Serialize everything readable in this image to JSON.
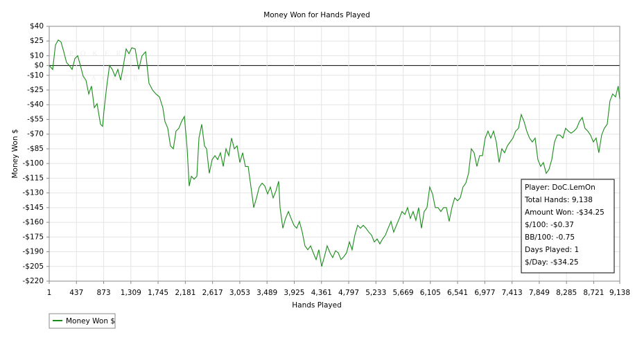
{
  "chart_data": {
    "type": "line",
    "title": "Money Won for Hands Played",
    "x_label": "Hands Played",
    "y_label": "Money Won $",
    "watermark": [
      "POKER",
      "TRACKER"
    ],
    "xlim": [
      1,
      9138
    ],
    "ylim": [
      -220,
      40
    ],
    "xticks": [
      1,
      437,
      873,
      {
        "value": 1309,
        "label": "1,309"
      },
      {
        "value": 1745,
        "label": "1,745"
      },
      {
        "value": 2181,
        "label": "2,181"
      },
      {
        "value": 2617,
        "label": "2,617"
      },
      {
        "value": 3053,
        "label": "3,053"
      },
      {
        "value": 3489,
        "label": "3,489"
      },
      {
        "value": 3925,
        "label": "3,925"
      },
      {
        "value": 4361,
        "label": "4,361"
      },
      {
        "value": 4797,
        "label": "4,797"
      },
      {
        "value": 5233,
        "label": "5,233"
      },
      {
        "value": 5669,
        "label": "5,669"
      },
      {
        "value": 6105,
        "label": "6,105"
      },
      {
        "value": 6541,
        "label": "6,541"
      },
      {
        "value": 6977,
        "label": "6,977"
      },
      {
        "value": 7413,
        "label": "7,413"
      },
      {
        "value": 7849,
        "label": "7,849"
      },
      {
        "value": 8285,
        "label": "8,285"
      },
      {
        "value": 8721,
        "label": "8,721"
      },
      {
        "value": 9138,
        "label": "9,138"
      }
    ],
    "yticks": [
      {
        "value": 40,
        "label": "$40"
      },
      {
        "value": 25,
        "label": "$25"
      },
      {
        "value": 10,
        "label": "$10"
      },
      {
        "value": 0,
        "label": "$0"
      },
      {
        "value": -10,
        "label": "-$10"
      },
      {
        "value": -25,
        "label": "-$25"
      },
      {
        "value": -40,
        "label": "-$40"
      },
      {
        "value": -55,
        "label": "-$55"
      },
      {
        "value": -70,
        "label": "-$70"
      },
      {
        "value": -85,
        "label": "-$85"
      },
      {
        "value": -100,
        "label": "-$100"
      },
      {
        "value": -115,
        "label": "-$115"
      },
      {
        "value": -130,
        "label": "-$130"
      },
      {
        "value": -145,
        "label": "-$145"
      },
      {
        "value": -160,
        "label": "-$160"
      },
      {
        "value": -175,
        "label": "-$175"
      },
      {
        "value": -190,
        "label": "-$190"
      },
      {
        "value": -205,
        "label": "-$205"
      },
      {
        "value": -220,
        "label": "-$220"
      }
    ],
    "grid": true,
    "x": [
      1,
      57,
      101,
      145,
      190,
      234,
      279,
      323,
      367,
      412,
      456,
      501,
      545,
      589,
      634,
      678,
      723,
      767,
      822,
      856,
      878,
      922,
      967,
      1011,
      1056,
      1100,
      1144,
      1189,
      1233,
      1278,
      1322,
      1378,
      1433,
      1488,
      1544,
      1599,
      1655,
      1710,
      1766,
      1821,
      1854,
      1899,
      1943,
      1988,
      2032,
      2077,
      2121,
      2166,
      2210,
      2243,
      2277,
      2321,
      2366,
      2399,
      2443,
      2488,
      2521,
      2565,
      2610,
      2654,
      2699,
      2743,
      2788,
      2832,
      2876,
      2921,
      2965,
      3010,
      3054,
      3099,
      3143,
      3187,
      3232,
      3276,
      3321,
      3365,
      3409,
      3454,
      3498,
      3543,
      3587,
      3631,
      3676,
      3698,
      3742,
      3786,
      3831,
      3875,
      3920,
      3964,
      4008,
      4053,
      4097,
      4142,
      4186,
      4230,
      4275,
      4319,
      4364,
      4408,
      4452,
      4497,
      4541,
      4586,
      4630,
      4674,
      4719,
      4763,
      4808,
      4852,
      4896,
      4941,
      4985,
      5030,
      5074,
      5118,
      5163,
      5207,
      5252,
      5296,
      5340,
      5385,
      5429,
      5474,
      5518,
      5562,
      5607,
      5651,
      5696,
      5740,
      5784,
      5829,
      5873,
      5917,
      5962,
      6006,
      6051,
      6095,
      6139,
      6184,
      6228,
      6273,
      6317,
      6361,
      6406,
      6450,
      6495,
      6539,
      6583,
      6628,
      6672,
      6717,
      6761,
      6805,
      6850,
      6894,
      6939,
      6983,
      7027,
      7072,
      7116,
      7161,
      7205,
      7249,
      7294,
      7338,
      7383,
      7427,
      7471,
      7516,
      7560,
      7605,
      7649,
      7693,
      7738,
      7782,
      7827,
      7871,
      7915,
      7960,
      8004,
      8049,
      8093,
      8137,
      8182,
      8226,
      8271,
      8315,
      8359,
      8404,
      8448,
      8493,
      8537,
      8581,
      8626,
      8670,
      8715,
      8759,
      8803,
      8848,
      8892,
      8937,
      8981,
      9025,
      9070,
      9114,
      9138
    ],
    "series": [
      {
        "name": "Money Won $",
        "color": "#1a8c1a",
        "values": [
          0,
          -4,
          21,
          26,
          24,
          14,
          3,
          0,
          -4,
          7,
          10,
          0,
          -11,
          -15,
          -29,
          -21,
          -43,
          -39,
          -60,
          -62,
          -46,
          -21,
          0,
          -4,
          -11,
          -4,
          -15,
          0,
          17,
          12,
          18,
          17,
          -4,
          10,
          14,
          -18,
          -25,
          -29,
          -32,
          -43,
          -57,
          -64,
          -82,
          -85,
          -67,
          -64,
          -57,
          -52,
          -85,
          -123,
          -113,
          -116,
          -113,
          -74,
          -60,
          -82,
          -85,
          -110,
          -96,
          -92,
          -96,
          -89,
          -103,
          -85,
          -92,
          -74,
          -85,
          -82,
          -99,
          -89,
          -103,
          -103,
          -124,
          -145,
          -135,
          -124,
          -120,
          -123,
          -131,
          -124,
          -135,
          -128,
          -118,
          -145,
          -166,
          -156,
          -149,
          -156,
          -163,
          -166,
          -159,
          -170,
          -184,
          -188,
          -184,
          -191,
          -198,
          -188,
          -205,
          -195,
          -184,
          -191,
          -196,
          -189,
          -191,
          -198,
          -195,
          -191,
          -180,
          -188,
          -173,
          -163,
          -166,
          -163,
          -166,
          -170,
          -173,
          -180,
          -177,
          -182,
          -177,
          -173,
          -166,
          -159,
          -170,
          -163,
          -156,
          -149,
          -152,
          -145,
          -156,
          -149,
          -158,
          -145,
          -166,
          -149,
          -145,
          -124,
          -131,
          -145,
          -145,
          -149,
          -145,
          -145,
          -159,
          -145,
          -135,
          -138,
          -135,
          -124,
          -120,
          -110,
          -85,
          -89,
          -103,
          -92,
          -92,
          -74,
          -67,
          -74,
          -67,
          -78,
          -99,
          -85,
          -89,
          -82,
          -78,
          -74,
          -67,
          -64,
          -50,
          -57,
          -67,
          -74,
          -78,
          -74,
          -96,
          -103,
          -99,
          -110,
          -106,
          -96,
          -78,
          -71,
          -71,
          -74,
          -64,
          -67,
          -69,
          -67,
          -64,
          -57,
          -53,
          -64,
          -67,
          -71,
          -78,
          -74,
          -89,
          -71,
          -64,
          -60,
          -36,
          -29,
          -32,
          -21,
          -34.25
        ]
      }
    ],
    "stats_box": [
      "Player: DoC.LemOn",
      "Total Hands: 9,138",
      "Amount Won: -$34.25",
      "$/100: -$0.37",
      "BB/100: -0.75",
      "Days Played: 1",
      "$/Day: -$34.25"
    ],
    "legend": "bottom-left"
  }
}
